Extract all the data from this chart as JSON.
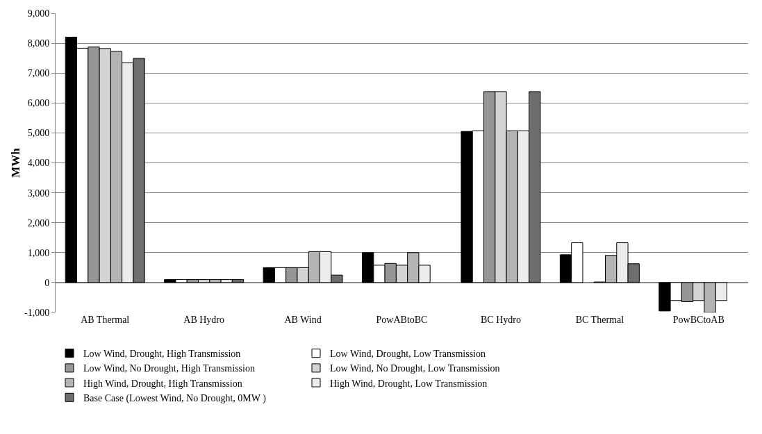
{
  "chart_data": {
    "type": "bar",
    "ylabel": "MWh",
    "categories": [
      "AB Thermal",
      "AB Hydro",
      "AB Wind",
      "PowABtoBC",
      "BC Hydro",
      "BC Thermal",
      "PowBCtoAB"
    ],
    "series": [
      {
        "name": "Low Wind, Drought, High Transmission",
        "color": "#000000",
        "values": [
          8200,
          100,
          500,
          1000,
          5050,
          930,
          -950
        ]
      },
      {
        "name": "Low Wind, Drought, Low Transmission",
        "color": "#ffffff",
        "values": [
          7830,
          100,
          500,
          580,
          5070,
          1330,
          -600
        ]
      },
      {
        "name": "Low Wind, No Drought, High Transmission",
        "color": "#969696",
        "values": [
          7870,
          100,
          500,
          640,
          6380,
          null,
          -640
        ]
      },
      {
        "name": "Low Wind, No Drought, Low Transmission",
        "color": "#d4d4d4",
        "values": [
          7820,
          100,
          500,
          580,
          6380,
          20,
          -600
        ]
      },
      {
        "name": "High Wind, Drought, High Transmission",
        "color": "#b4b4b4",
        "values": [
          7720,
          100,
          1030,
          1000,
          5070,
          910,
          -1000
        ]
      },
      {
        "name": "High Wind, Drought, Low Transmission",
        "color": "#ececec",
        "values": [
          7340,
          100,
          1030,
          580,
          5070,
          1330,
          -600
        ]
      },
      {
        "name": "Base Case (Lowest Wind, No Drought, 0MW )",
        "color": "#6e6e6e",
        "values": [
          7490,
          100,
          250,
          null,
          6380,
          630,
          null
        ]
      }
    ],
    "ylim": [
      -1000,
      9000
    ],
    "yticks": [
      {
        "value": -1000,
        "label": "-1,000"
      },
      0,
      {
        "value": 1000,
        "label": "1,000"
      },
      {
        "value": 2000,
        "label": "2,000"
      },
      {
        "value": 3000,
        "label": "3,000"
      },
      {
        "value": 4000,
        "label": "4,000"
      },
      {
        "value": 5000,
        "label": "5,000"
      },
      {
        "value": 6000,
        "label": "6,000"
      },
      {
        "value": 7000,
        "label": "7,000"
      },
      {
        "value": 8000,
        "label": "8,000"
      },
      {
        "value": 9000,
        "label": "9,000"
      }
    ],
    "grid": "y",
    "legend": "bottom"
  }
}
